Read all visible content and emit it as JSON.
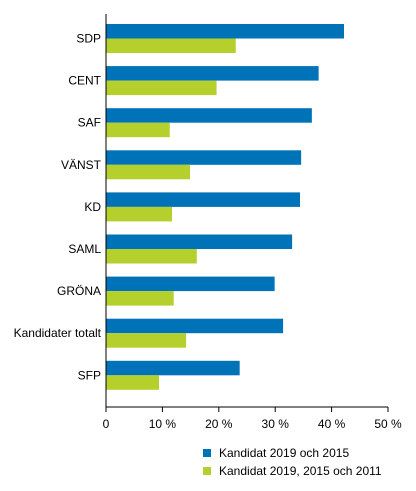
{
  "chart_data": {
    "type": "bar",
    "orientation": "horizontal",
    "categories": [
      "SDP",
      "CENT",
      "SAF",
      "VÄNST",
      "KD",
      "SAML",
      "GRÖNA",
      "Kandidater totalt",
      "SFP"
    ],
    "series": [
      {
        "name": "Kandidat 2019 och 2015",
        "color": "#0072b8",
        "values": [
          42.2,
          37.7,
          36.5,
          34.6,
          34.4,
          33.0,
          29.9,
          31.4,
          23.7
        ]
      },
      {
        "name": "Kandidat 2019, 2015 och 2011",
        "color": "#b5cf2d",
        "values": [
          23.0,
          19.6,
          11.3,
          14.9,
          11.7,
          16.1,
          12.0,
          14.2,
          9.4
        ]
      }
    ],
    "xlim": [
      0,
      50
    ],
    "xticks": [
      0,
      10,
      20,
      30,
      40,
      50
    ],
    "xtick_labels": [
      "0",
      "10 %",
      "20 %",
      "30 %",
      "40 %",
      "50 %"
    ],
    "grid": false,
    "legend_position": "bottom-right"
  }
}
